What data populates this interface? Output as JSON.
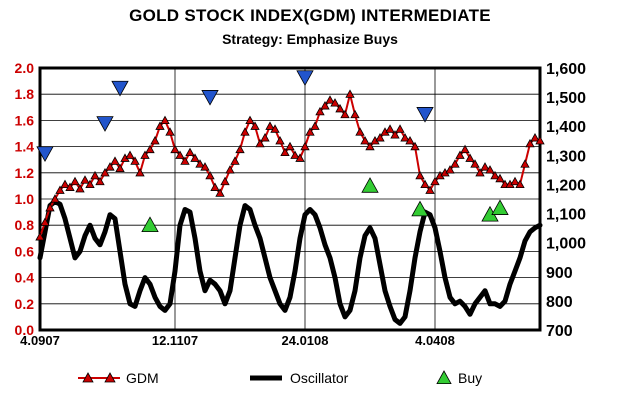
{
  "chart_data": {
    "type": "line",
    "title": "GOLD STOCK INDEX(GDM)  INTERMEDIATE",
    "subtitle": "Strategy: Emphasize Buys",
    "left_axis": {
      "min": 0,
      "max": 2.0,
      "ticks": [
        "0.0",
        "0.2",
        "0.4",
        "0.6",
        "0.8",
        "1.0",
        "1.2",
        "1.4",
        "1.6",
        "1.8",
        "2.0"
      ],
      "color": "#cc0000"
    },
    "right_axis": {
      "min": 700,
      "max": 1600,
      "ticks": [
        "700",
        "800",
        "900",
        "1,000",
        "1,100",
        "1,200",
        "1,300",
        "1,400",
        "1,500",
        "1,600"
      ]
    },
    "x_axis": {
      "min": 0,
      "max": 100,
      "tick_positions": [
        0,
        27,
        53,
        79
      ],
      "tick_labels": [
        "4.0907",
        "12.1107",
        "24.0108",
        "4.0408"
      ]
    },
    "grid": true,
    "legend_position": "bottom",
    "legend": [
      {
        "name": "GDM",
        "color": "#cc0000",
        "marker": "triangle-red"
      },
      {
        "name": "Oscillator",
        "color": "#000000",
        "marker": "line"
      },
      {
        "name": "Buy",
        "color": "#33cc33",
        "marker": "triangle-green"
      }
    ],
    "series": [
      {
        "name": "GDM",
        "axis": "right",
        "color": "#cc0000",
        "x": [
          0,
          1,
          2,
          3,
          4,
          5,
          6,
          7,
          8,
          9,
          10,
          11,
          12,
          13,
          14,
          15,
          16,
          17,
          18,
          19,
          20,
          21,
          22,
          23,
          24,
          25,
          26,
          27,
          28,
          29,
          30,
          31,
          32,
          33,
          34,
          35,
          36,
          37,
          38,
          39,
          40,
          41,
          42,
          43,
          44,
          45,
          46,
          47,
          48,
          49,
          50,
          51,
          52,
          53,
          54,
          55,
          56,
          57,
          58,
          59,
          60,
          61,
          62,
          63,
          64,
          65,
          66,
          67,
          68,
          69,
          70,
          71,
          72,
          73,
          74,
          75,
          76,
          77,
          78,
          79,
          80,
          81,
          82,
          83,
          84,
          85,
          86,
          87,
          88,
          89,
          90,
          91,
          92,
          93,
          94,
          95,
          96,
          97,
          98,
          99,
          100
        ],
        "y": [
          1020,
          1070,
          1120,
          1150,
          1180,
          1200,
          1190,
          1210,
          1185,
          1215,
          1200,
          1230,
          1210,
          1240,
          1260,
          1280,
          1255,
          1290,
          1300,
          1280,
          1240,
          1300,
          1320,
          1350,
          1400,
          1420,
          1380,
          1320,
          1300,
          1280,
          1310,
          1290,
          1270,
          1260,
          1230,
          1190,
          1170,
          1210,
          1250,
          1280,
          1320,
          1380,
          1420,
          1400,
          1340,
          1360,
          1400,
          1390,
          1350,
          1310,
          1330,
          1300,
          1290,
          1330,
          1380,
          1400,
          1450,
          1470,
          1490,
          1480,
          1460,
          1440,
          1510,
          1440,
          1380,
          1350,
          1330,
          1350,
          1360,
          1380,
          1390,
          1370,
          1390,
          1360,
          1350,
          1330,
          1230,
          1200,
          1180,
          1210,
          1230,
          1240,
          1250,
          1270,
          1300,
          1320,
          1290,
          1270,
          1240,
          1260,
          1250,
          1230,
          1220,
          1200,
          1200,
          1210,
          1200,
          1270,
          1340,
          1360,
          1350
        ]
      },
      {
        "name": "Oscillator",
        "axis": "left",
        "color": "#000000",
        "x": [
          0,
          1,
          2,
          3,
          4,
          5,
          6,
          7,
          8,
          9,
          10,
          11,
          12,
          13,
          14,
          15,
          16,
          17,
          18,
          19,
          20,
          21,
          22,
          23,
          24,
          25,
          26,
          27,
          28,
          29,
          30,
          31,
          32,
          33,
          34,
          35,
          36,
          37,
          38,
          39,
          40,
          41,
          42,
          43,
          44,
          45,
          46,
          47,
          48,
          49,
          50,
          51,
          52,
          53,
          54,
          55,
          56,
          57,
          58,
          59,
          60,
          61,
          62,
          63,
          64,
          65,
          66,
          67,
          68,
          69,
          70,
          71,
          72,
          73,
          74,
          75,
          76,
          77,
          78,
          79,
          80,
          81,
          82,
          83,
          84,
          85,
          86,
          87,
          88,
          89,
          90,
          91,
          92,
          93,
          94,
          95,
          96,
          97,
          98,
          99,
          100
        ],
        "y": [
          0.55,
          0.75,
          0.95,
          0.98,
          0.96,
          0.85,
          0.7,
          0.55,
          0.6,
          0.72,
          0.8,
          0.7,
          0.65,
          0.75,
          0.88,
          0.85,
          0.6,
          0.35,
          0.2,
          0.18,
          0.3,
          0.4,
          0.35,
          0.25,
          0.18,
          0.15,
          0.2,
          0.45,
          0.8,
          0.92,
          0.9,
          0.7,
          0.45,
          0.3,
          0.38,
          0.35,
          0.3,
          0.2,
          0.3,
          0.55,
          0.8,
          0.95,
          0.92,
          0.8,
          0.7,
          0.55,
          0.4,
          0.3,
          0.2,
          0.15,
          0.25,
          0.45,
          0.7,
          0.88,
          0.92,
          0.88,
          0.78,
          0.65,
          0.55,
          0.4,
          0.2,
          0.1,
          0.15,
          0.3,
          0.55,
          0.72,
          0.78,
          0.7,
          0.5,
          0.3,
          0.18,
          0.08,
          0.05,
          0.1,
          0.3,
          0.55,
          0.75,
          0.9,
          0.88,
          0.78,
          0.6,
          0.4,
          0.25,
          0.2,
          0.22,
          0.18,
          0.12,
          0.2,
          0.25,
          0.3,
          0.2,
          0.2,
          0.18,
          0.22,
          0.35,
          0.45,
          0.55,
          0.68,
          0.75,
          0.78,
          0.8
        ]
      },
      {
        "name": "Buy",
        "axis": "left",
        "color": "#33cc33",
        "marker": "triangle-up",
        "x": [
          22,
          66,
          76,
          90,
          92
        ],
        "y": [
          0.8,
          1.1,
          0.92,
          0.88,
          0.93
        ]
      },
      {
        "name": "Sell",
        "axis": "left",
        "color": "#2255cc",
        "marker": "triangle-down",
        "x": [
          1,
          13,
          16,
          34,
          53,
          77
        ],
        "y": [
          1.35,
          1.58,
          1.85,
          1.78,
          1.93,
          1.65
        ]
      }
    ]
  }
}
